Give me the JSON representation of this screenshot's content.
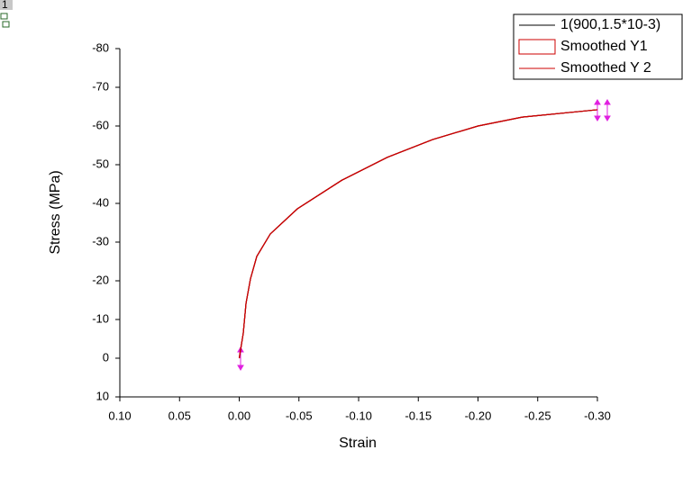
{
  "layer_label": "1",
  "chart_data": {
    "type": "line",
    "x_label": "Strain",
    "y_label": "Stress (MPa)",
    "x": [
      0,
      -0.0034,
      -0.0057,
      -0.0094,
      -0.0147,
      -0.026,
      -0.0487,
      -0.086,
      -0.124,
      -0.162,
      -0.2,
      -0.237,
      -0.3
    ],
    "series": [
      {
        "name": "1(900,1.5*10-3)",
        "color": "#000000",
        "values": [
          0,
          -6.5,
          -14.2,
          -20.5,
          -26.3,
          -32.1,
          -38.6,
          -46,
          -51.9,
          -56.5,
          -60,
          -62.3,
          -64.2
        ]
      },
      {
        "name": "Smoothed Y1",
        "color": "#cc0000",
        "values": [
          0,
          -6.5,
          -14.2,
          -20.5,
          -26.3,
          -32.1,
          -38.6,
          -46,
          -51.9,
          -56.5,
          -60,
          -62.3,
          -64.2
        ]
      },
      {
        "name": "Smoothed Y 2",
        "color": "#cc0000",
        "values": [
          0,
          -6.5,
          -14.2,
          -20.5,
          -26.3,
          -32.1,
          -38.6,
          -46,
          -51.9,
          -56.5,
          -60,
          -62.3,
          -64.2
        ]
      }
    ],
    "xlim": [
      0.1,
      -0.3
    ],
    "xticks": [
      {
        "value": 0.1,
        "label": "0.10"
      },
      {
        "value": 0.05,
        "label": "0.05"
      },
      {
        "value": 0,
        "label": "0.00"
      },
      {
        "value": -0.05,
        "label": "-0.05"
      },
      {
        "value": -0.1,
        "label": "-0.10"
      },
      {
        "value": -0.15,
        "label": "-0.15"
      },
      {
        "value": -0.2,
        "label": "-0.20"
      },
      {
        "value": -0.25,
        "label": "-0.25"
      },
      {
        "value": -0.3,
        "label": "-0.30"
      }
    ],
    "ylim": [
      10,
      -80
    ],
    "yticks": [
      10,
      0,
      -10,
      -20,
      -30,
      -40,
      -50,
      -60,
      -70,
      -80
    ],
    "legend": "top-right"
  }
}
